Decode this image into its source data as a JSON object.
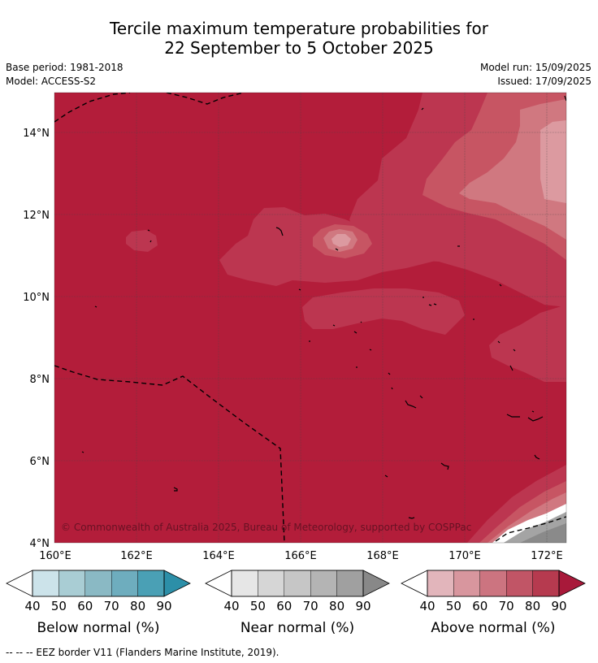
{
  "title": {
    "line1": "Tercile maximum temperature probabilities for",
    "line2": "22 September to 5 October 2025"
  },
  "meta": {
    "base_period": "Base period: 1981-2018",
    "model": "Model: ACCESS-S2",
    "model_run": "Model run: 15/09/2025",
    "issued": "Issued: 17/09/2025"
  },
  "map": {
    "latitude_labels": [
      "14°N",
      "12°N",
      "10°N",
      "8°N",
      "6°N",
      "4°N"
    ],
    "longitude_labels": [
      "160°E",
      "162°E",
      "164°E",
      "166°E",
      "168°E",
      "170°E",
      "172°E"
    ],
    "copyright": "© Commonwealth of Australia 2025, Bureau of Meteorology, supported by COSPPac",
    "colors": {
      "above_90": "#b31d3a",
      "above_80": "#bc3650",
      "above_70": "#c75563",
      "above_60": "#d07880",
      "above_50": "#dc9aa0",
      "near_90": "#8a8a8a",
      "near_80": "#a4a4a4"
    }
  },
  "legends": [
    {
      "name": "Below normal (%)",
      "ticks": [
        "40",
        "50",
        "60",
        "70",
        "80",
        "90"
      ],
      "colors": [
        "#ffffff",
        "#cce3ea",
        "#a9cdd4",
        "#8ab9c4",
        "#6eadbe",
        "#4aa0b5",
        "#2c8fa8"
      ]
    },
    {
      "name": "Near normal (%)",
      "ticks": [
        "40",
        "50",
        "60",
        "70",
        "80",
        "90"
      ],
      "colors": [
        "#ffffff",
        "#e6e6e6",
        "#d6d6d6",
        "#c6c6c6",
        "#b4b4b4",
        "#a0a0a0",
        "#888888"
      ]
    },
    {
      "name": "Above normal (%)",
      "ticks": [
        "40",
        "50",
        "60",
        "70",
        "80",
        "90"
      ],
      "colors": [
        "#ffffff",
        "#e2b5bb",
        "#d8969e",
        "#cc7480",
        "#c15566",
        "#b63a4f",
        "#a8193a"
      ]
    }
  ],
  "footer": "-- -- -- EEZ border V11 (Flanders Marine Institute, 2019)."
}
